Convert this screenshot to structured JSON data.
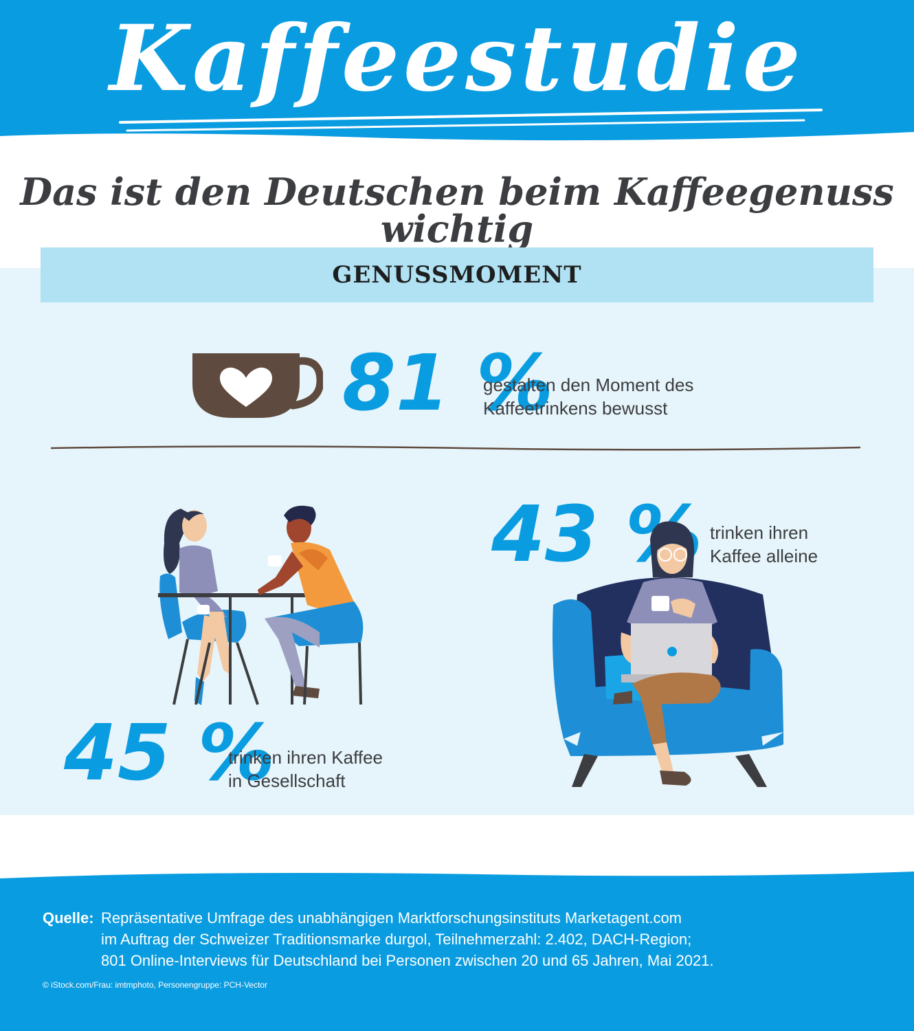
{
  "header": {
    "title": "Kaffeestudie"
  },
  "subtitle": "Das ist den Deutschen beim Kaffeegenuss wichtig",
  "section": {
    "title": "GENUSSMOMENT"
  },
  "stats": [
    {
      "value": "81 %",
      "lines": [
        "gestalten den Moment des",
        "Kaffeetrinkens bewusst"
      ]
    },
    {
      "value": "43 %",
      "lines": [
        "trinken ihren",
        "Kaffee alleine"
      ]
    },
    {
      "value": "45 %",
      "lines": [
        "trinken ihren Kaffee",
        "in Gesellschaft"
      ]
    }
  ],
  "source": {
    "label": "Quelle:",
    "lines": [
      "Repräsentative Umfrage des unabhängigen Marktforschungsinstituts Marketagent.com",
      "im Auftrag der Schweizer Traditionsmarke durgol, Teilnehmerzahl: 2.402, DACH-Region;",
      "801 Online-Interviews für Deutschland bei Personen zwischen 20 und 65 Jahren, Mai 2021."
    ]
  },
  "credit": "© iStock.com/Frau: imtmphoto, Personengruppe: PCH-Vector",
  "colors": {
    "brand_blue": "#0a9ce0",
    "light_blue": "#b0e2f3",
    "panel": "#e6f5fb",
    "coffee_brown": "#5f4a3f"
  },
  "icons": {
    "mug": "coffee-mug-heart-icon",
    "couple": "couple-at-table-illustration",
    "woman": "woman-on-armchair-illustration"
  }
}
